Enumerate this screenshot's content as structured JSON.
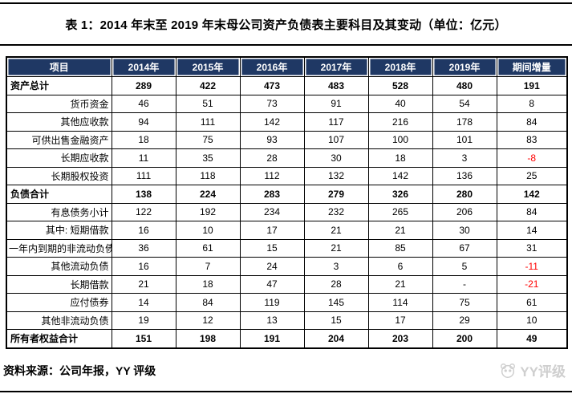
{
  "title": "表 1：2014 年末至 2019 年末母公司资产负债表主要科目及其变动（单位：亿元）",
  "table": {
    "columns": [
      "项目",
      "2014年",
      "2015年",
      "2016年",
      "2017年",
      "2018年",
      "2019年",
      "期间增量"
    ],
    "rows": [
      {
        "label": "资产总计",
        "bold": true,
        "values": [
          "289",
          "422",
          "473",
          "483",
          "528",
          "480",
          "191"
        ]
      },
      {
        "label": "货币资金",
        "bold": false,
        "values": [
          "46",
          "51",
          "73",
          "91",
          "40",
          "54",
          "8"
        ]
      },
      {
        "label": "其他应收款",
        "bold": false,
        "values": [
          "94",
          "111",
          "142",
          "117",
          "216",
          "178",
          "84"
        ]
      },
      {
        "label": "可供出售金融资产",
        "bold": false,
        "values": [
          "18",
          "75",
          "93",
          "107",
          "100",
          "101",
          "83"
        ]
      },
      {
        "label": "长期应收款",
        "bold": false,
        "values": [
          "11",
          "35",
          "28",
          "30",
          "18",
          "3",
          "-8"
        ]
      },
      {
        "label": "长期股权投资",
        "bold": false,
        "values": [
          "111",
          "118",
          "112",
          "132",
          "142",
          "136",
          "25"
        ]
      },
      {
        "label": "负债合计",
        "bold": true,
        "values": [
          "138",
          "224",
          "283",
          "279",
          "326",
          "280",
          "142"
        ]
      },
      {
        "label": "有息债务小计",
        "bold": false,
        "values": [
          "122",
          "192",
          "234",
          "232",
          "265",
          "206",
          "84"
        ]
      },
      {
        "label": "其中: 短期借款",
        "bold": false,
        "values": [
          "16",
          "10",
          "17",
          "21",
          "21",
          "30",
          "14"
        ]
      },
      {
        "label": "一年内到期的非流动负债",
        "bold": false,
        "values": [
          "36",
          "61",
          "15",
          "21",
          "85",
          "67",
          "31"
        ]
      },
      {
        "label": "其他流动负债",
        "bold": false,
        "values": [
          "16",
          "7",
          "24",
          "3",
          "6",
          "5",
          "-11"
        ]
      },
      {
        "label": "长期借款",
        "bold": false,
        "values": [
          "21",
          "18",
          "47",
          "28",
          "21",
          "-",
          "-21"
        ]
      },
      {
        "label": "应付债券",
        "bold": false,
        "values": [
          "14",
          "84",
          "119",
          "145",
          "114",
          "75",
          "61"
        ]
      },
      {
        "label": "其他非流动负债",
        "bold": false,
        "values": [
          "19",
          "12",
          "13",
          "15",
          "17",
          "29",
          "10"
        ]
      },
      {
        "label": "所有者权益合计",
        "bold": true,
        "values": [
          "151",
          "198",
          "191",
          "204",
          "203",
          "200",
          "49"
        ]
      }
    ]
  },
  "footer": {
    "source": "资料来源：公司年报，YY 评级",
    "logo_text": "YY评级"
  },
  "colors": {
    "header_bg": "#1F3864",
    "header_text": "#FFFFFF",
    "negative": "#FF0000",
    "border": "#000000",
    "watermark": "#CFCFCF"
  }
}
